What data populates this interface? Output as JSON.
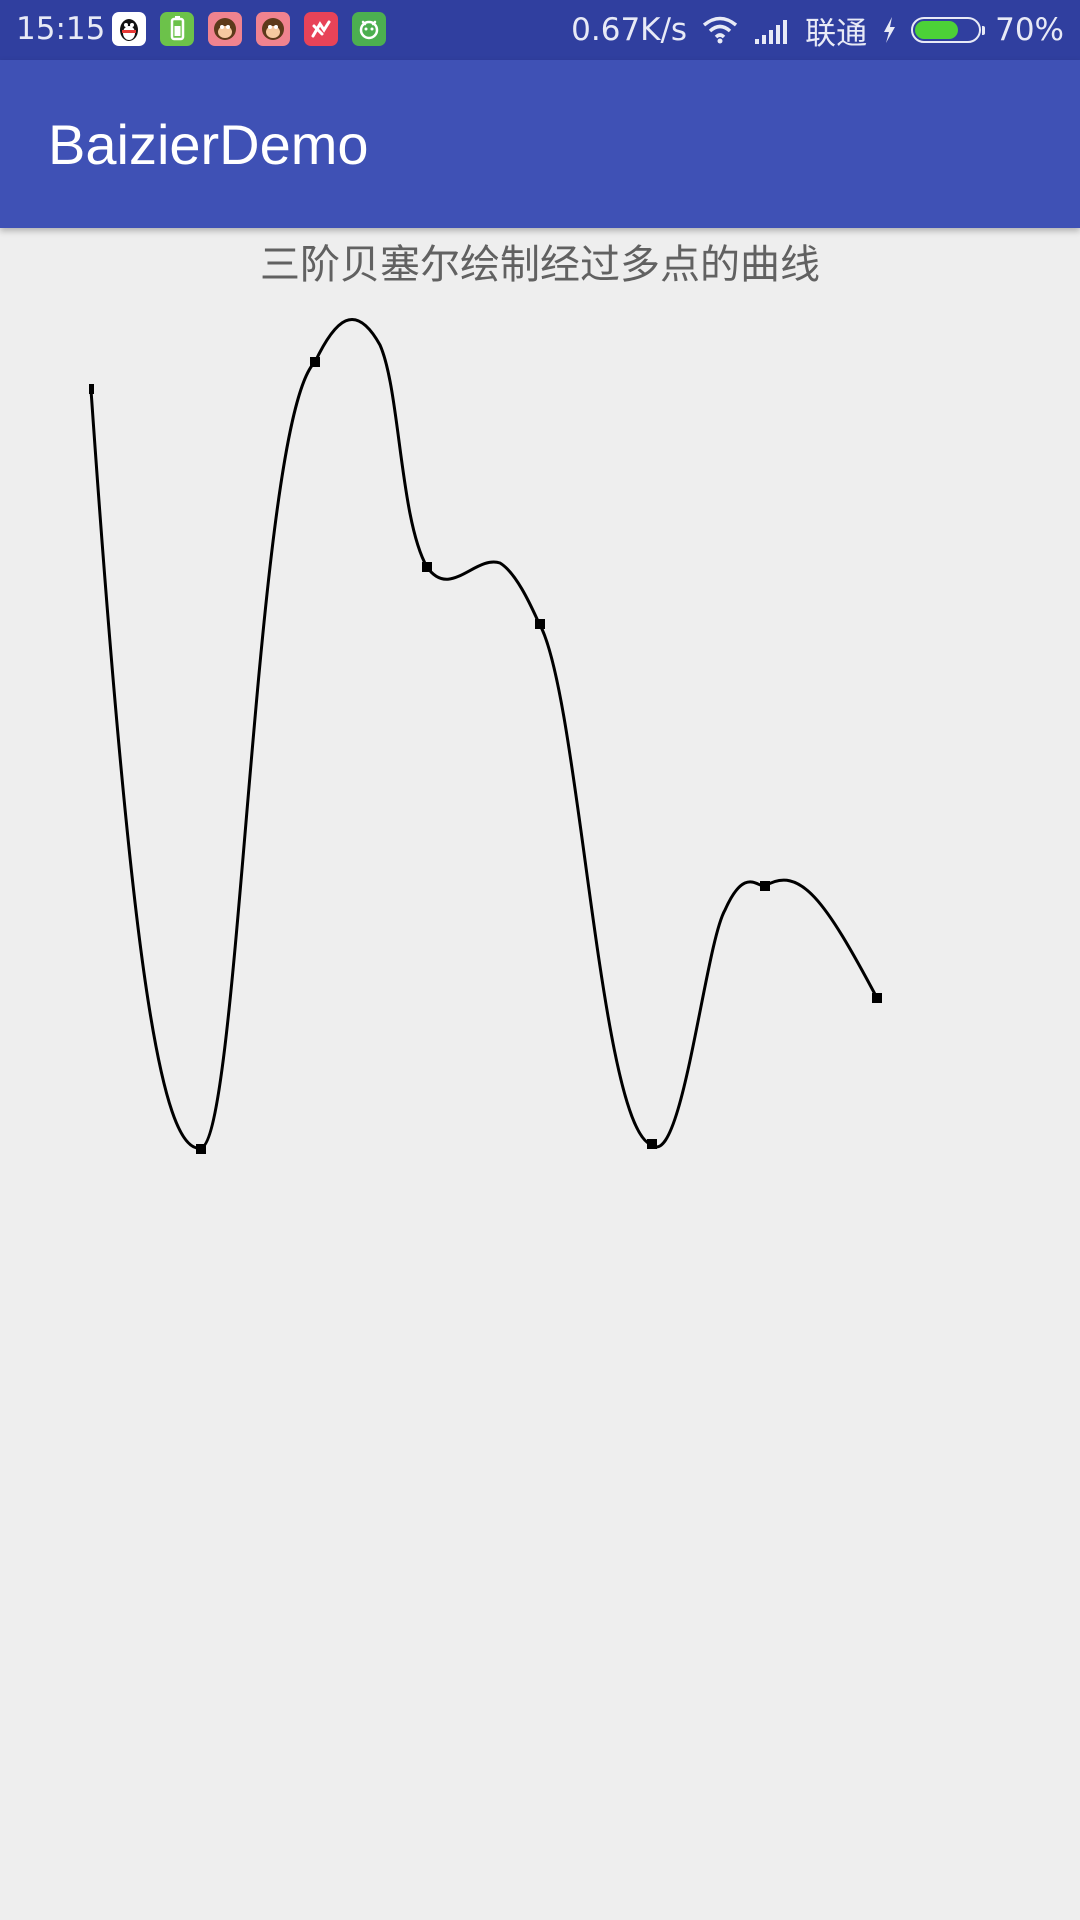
{
  "status_bar": {
    "time": "15:15",
    "notification_icons": [
      {
        "name": "qq-icon",
        "color": "#ffffff"
      },
      {
        "name": "battery-app-icon",
        "color": "#6cc24a"
      },
      {
        "name": "monkey-app-icon",
        "color": "#f0838f"
      },
      {
        "name": "monkey-app-icon-2",
        "color": "#f0838f"
      },
      {
        "name": "red-app-icon",
        "color": "#e84358"
      },
      {
        "name": "green-app-icon",
        "color": "#4caf50"
      }
    ],
    "network_speed": "0.67K/s",
    "carrier": "联通",
    "battery_percent": "70%",
    "battery_level": 0.7
  },
  "app_bar": {
    "title": "BaizierDemo",
    "color": "#3f51b5"
  },
  "content": {
    "caption": "三阶贝塞尔绘制经过多点的曲线"
  }
}
